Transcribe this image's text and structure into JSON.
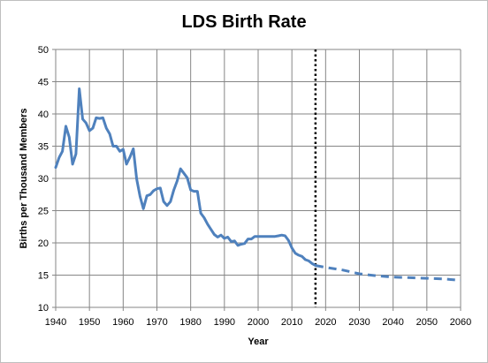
{
  "chart_data": {
    "type": "line",
    "title": "LDS Birth Rate",
    "xlabel": "Year",
    "ylabel": "Births per Thousand Members",
    "xlim": [
      1940,
      2060
    ],
    "ylim": [
      10,
      50
    ],
    "x_ticks": [
      1940,
      1950,
      1960,
      1970,
      1980,
      1990,
      2000,
      2010,
      2020,
      2030,
      2040,
      2050,
      2060
    ],
    "y_ticks": [
      10,
      15,
      20,
      25,
      30,
      35,
      40,
      45,
      50
    ],
    "grid": true,
    "legend": "none",
    "series": [
      {
        "style": "solid",
        "color": "#4f81bd",
        "x": [
          1940,
          1941,
          1942,
          1943,
          1944,
          1945,
          1946,
          1947,
          1948,
          1949,
          1950,
          1951,
          1952,
          1953,
          1954,
          1955,
          1956,
          1957,
          1958,
          1959,
          1960,
          1961,
          1962,
          1963,
          1964,
          1965,
          1966,
          1967,
          1968,
          1969,
          1970,
          1971,
          1972,
          1973,
          1974,
          1975,
          1976,
          1977,
          1978,
          1979,
          1980,
          1981,
          1982,
          1983,
          1984,
          1985,
          1986,
          1987,
          1988,
          1989,
          1990,
          1991,
          1992,
          1993,
          1994,
          1995,
          1996,
          1997,
          1998,
          1999,
          2000,
          2001,
          2002,
          2003,
          2004,
          2005,
          2006,
          2007,
          2008,
          2009,
          2010,
          2011,
          2012,
          2013,
          2014,
          2015,
          2016,
          2017
        ],
        "y": [
          31.7,
          33.2,
          34.2,
          38.1,
          36.4,
          32.2,
          33.8,
          43.9,
          39.2,
          38.6,
          37.4,
          37.8,
          39.4,
          39.3,
          39.4,
          37.8,
          36.9,
          35.0,
          35.0,
          34.2,
          34.5,
          32.2,
          33.3,
          34.6,
          29.9,
          27.2,
          25.3,
          27.3,
          27.5,
          28.1,
          28.4,
          28.5,
          26.4,
          25.8,
          26.4,
          28.2,
          29.6,
          31.5,
          30.8,
          30.1,
          28.2,
          28.0,
          28.0,
          24.6,
          23.9,
          22.9,
          22.1,
          21.3,
          20.9,
          21.2,
          20.7,
          20.9,
          20.2,
          20.3,
          19.6,
          19.8,
          19.9,
          20.6,
          20.6,
          21.0,
          21.0,
          21.0,
          21.0,
          21.0,
          21.0,
          21.0,
          21.1,
          21.2,
          21.1,
          20.4,
          19.2,
          18.4,
          18.1,
          17.9,
          17.4,
          17.2,
          16.8,
          16.5
        ]
      },
      {
        "style": "dashed",
        "color": "#4f81bd",
        "x": [
          2017,
          2020,
          2025,
          2030,
          2035,
          2040,
          2045,
          2050,
          2055,
          2060
        ],
        "y": [
          16.5,
          16.2,
          15.8,
          15.2,
          14.9,
          14.7,
          14.6,
          14.5,
          14.4,
          14.2
        ]
      }
    ],
    "vertical_marker": {
      "x": 2017,
      "style": "dotted",
      "color": "#000000"
    }
  }
}
